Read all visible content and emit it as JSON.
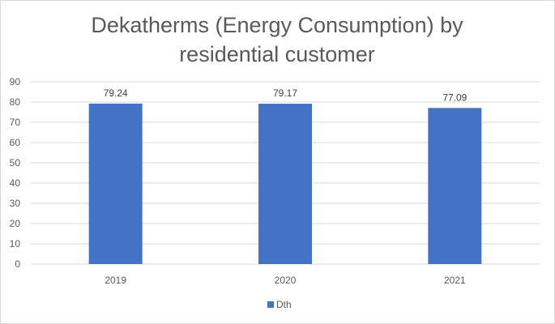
{
  "chart_data": {
    "type": "bar",
    "title": "Dekatherms (Energy Consumption) by residential customer",
    "title_lines": [
      "Dekatherms (Energy Consumption) by",
      "residential customer"
    ],
    "categories": [
      "2019",
      "2020",
      "2021"
    ],
    "series": [
      {
        "name": "Dth",
        "values": [
          79.24,
          79.17,
          77.09
        ],
        "color": "#4472c4"
      }
    ],
    "data_labels": [
      "79.24",
      "79.17",
      "77.09"
    ],
    "ylim": [
      0,
      90
    ],
    "yticks": [
      0,
      10,
      20,
      30,
      40,
      50,
      60,
      70,
      80,
      90
    ],
    "grid": true,
    "legend_position": "bottom",
    "xlabel": "",
    "ylabel": ""
  }
}
